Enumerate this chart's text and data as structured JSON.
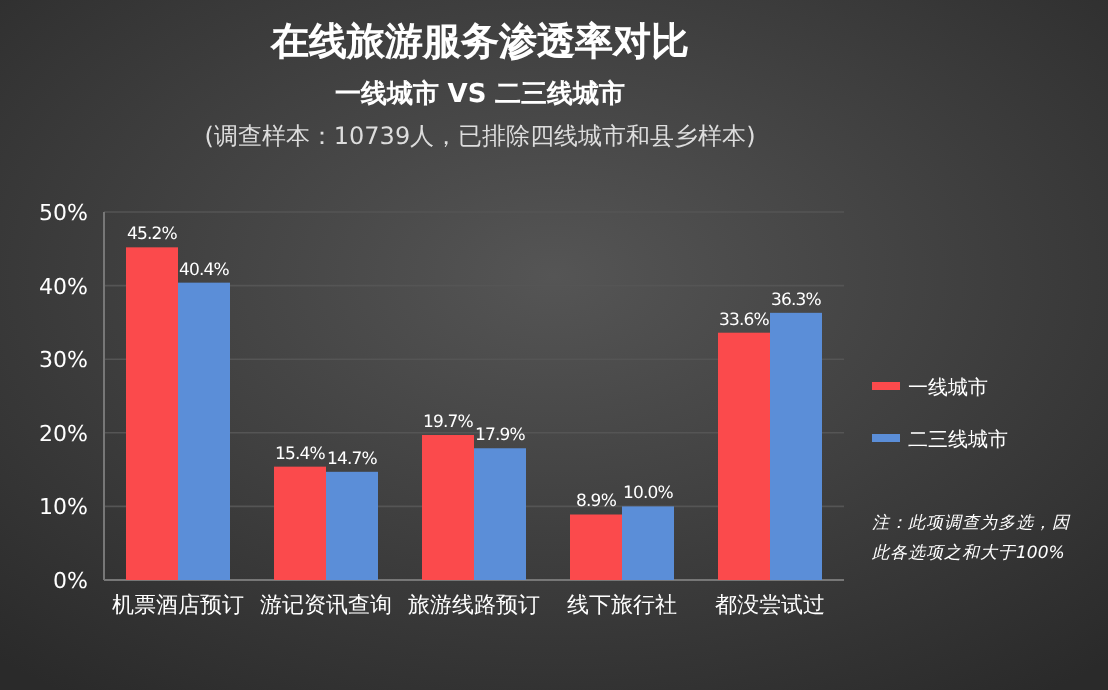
{
  "chart_data": {
    "type": "bar",
    "title": "在线旅游服务渗透率对比",
    "subtitle": "一线城市 VS 二三线城市\n(调查样本：10739人，已排除四线城市和县乡样本)",
    "categories": [
      "机票酒店预订",
      "游记资讯查询",
      "旅游线路预订",
      "线下旅行社",
      "都没尝试过"
    ],
    "series": [
      {
        "name": "一线城市",
        "color": "#fb4a4c",
        "values": [
          45.2,
          15.4,
          19.7,
          8.9,
          33.6
        ],
        "value_labels": [
          "45.2%",
          "15.4%",
          "19.7%",
          "8.9%",
          "33.6%"
        ]
      },
      {
        "name": "二三线城市",
        "color": "#5b8ed8",
        "values": [
          40.4,
          14.7,
          17.9,
          10.0,
          36.3
        ],
        "value_labels": [
          "40.4%",
          "14.7%",
          "17.9%",
          "10.0%",
          "36.3%"
        ]
      }
    ],
    "ylim": [
      0,
      50
    ],
    "yticks": [
      {
        "value": 0,
        "label": "0%"
      },
      {
        "value": 10,
        "label": "10%"
      },
      {
        "value": 20,
        "label": "20%"
      },
      {
        "value": 30,
        "label": "30%"
      },
      {
        "value": 40,
        "label": "40%"
      },
      {
        "value": 50,
        "label": "50%"
      }
    ],
    "grid": "y",
    "legend": "right",
    "annotations": [
      "注：此项调查为多选，因此各选项之和大于100%"
    ]
  }
}
